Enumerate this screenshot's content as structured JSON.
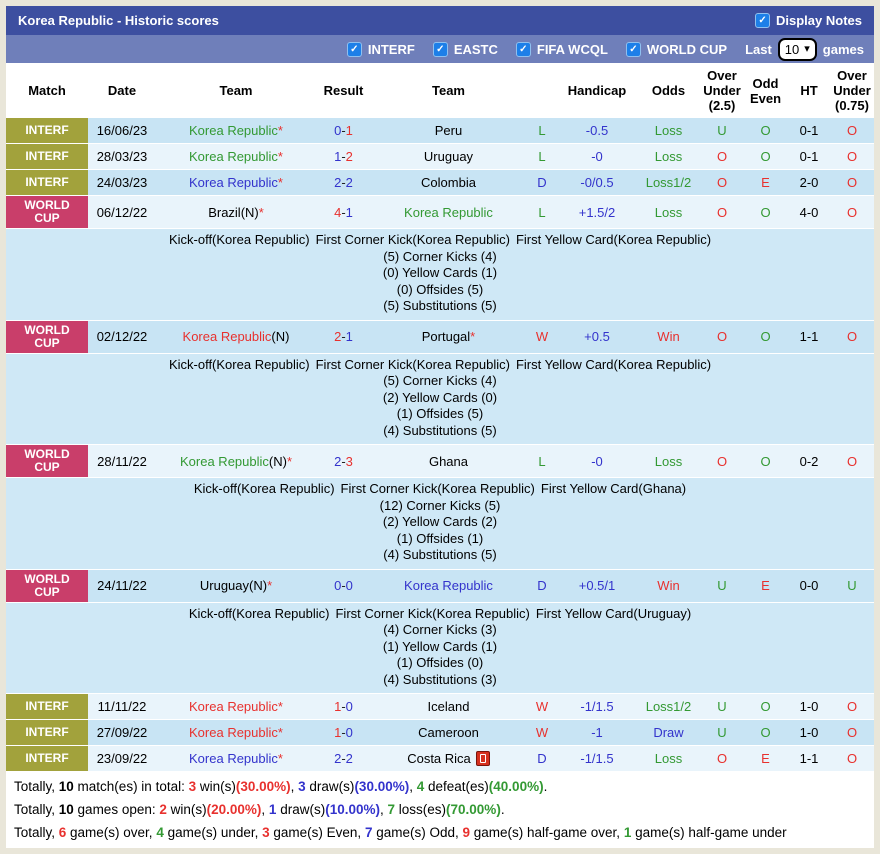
{
  "palette": {
    "titlebar_bg": "#3d4fa0",
    "subbar_bg": "#6f7fba",
    "frame_border": "#e9e6d9",
    "interf_label_bg": "#a2a23c",
    "worldcup_label_bg": "#c93e6a",
    "row_dark_bg": "#c8e4f4",
    "row_light_bg": "#e9f4fb",
    "notes_bg": "#cfe8f6",
    "checkbox_blue": "#1d7fe8",
    "text_red": "#e8312e",
    "text_green": "#339933",
    "text_blue": "#3333cc"
  },
  "icons": {
    "checkmark": "✓",
    "chevron_down": "▾"
  },
  "titlebar": {
    "title": "Korea Republic - Historic scores",
    "display_notes": {
      "label": "Display Notes",
      "checked": true
    }
  },
  "filters": {
    "checkboxes": [
      {
        "label": "INTERF",
        "checked": true
      },
      {
        "label": "EASTC",
        "checked": true
      },
      {
        "label": "FIFA WCQL",
        "checked": true
      },
      {
        "label": "WORLD CUP",
        "checked": true
      }
    ],
    "last_label": "Last",
    "games_count": "10",
    "games_label": "games"
  },
  "table": {
    "headers": {
      "match": "Match",
      "date": "Date",
      "team1": "Team",
      "result": "Result",
      "team2": "Team",
      "wld": "",
      "handicap": "Handicap",
      "odds": "Odds",
      "ou25": "Over Under (2.5)",
      "oddeven": "Odd Even",
      "ht": "HT",
      "ou075": "Over Under (0.75)"
    }
  },
  "rows": [
    {
      "competition": "INTERF",
      "date": "16/06/23",
      "home": {
        "name": "Korea Republic",
        "suffix": "",
        "star": "*",
        "color": "green"
      },
      "score": {
        "home": "0",
        "sep": "-",
        "away": "1",
        "home_color": "blue",
        "away_color": "red"
      },
      "away": {
        "name": "Peru",
        "suffix": "",
        "star": "",
        "color": "black"
      },
      "result_letter": {
        "text": "L",
        "color": "green"
      },
      "handicap": {
        "text": "-0.5",
        "color": "blue"
      },
      "odds": {
        "text": "Loss",
        "color": "green"
      },
      "over_under_25": {
        "text": "U",
        "color": "green"
      },
      "odd_even": {
        "text": "O",
        "color": "green"
      },
      "ht": {
        "text": "0-1",
        "color": "black"
      },
      "over_under_075": {
        "text": "O",
        "color": "red"
      }
    },
    {
      "competition": "INTERF",
      "date": "28/03/23",
      "home": {
        "name": "Korea Republic",
        "suffix": "",
        "star": "*",
        "color": "green"
      },
      "score": {
        "home": "1",
        "sep": "-",
        "away": "2",
        "home_color": "blue",
        "away_color": "red"
      },
      "away": {
        "name": "Uruguay",
        "suffix": "",
        "star": "",
        "color": "black"
      },
      "result_letter": {
        "text": "L",
        "color": "green"
      },
      "handicap": {
        "text": "-0",
        "color": "blue"
      },
      "odds": {
        "text": "Loss",
        "color": "green"
      },
      "over_under_25": {
        "text": "O",
        "color": "red"
      },
      "odd_even": {
        "text": "O",
        "color": "green"
      },
      "ht": {
        "text": "0-1",
        "color": "black"
      },
      "over_under_075": {
        "text": "O",
        "color": "red"
      }
    },
    {
      "competition": "INTERF",
      "date": "24/03/23",
      "home": {
        "name": "Korea Republic",
        "suffix": "",
        "star": "*",
        "color": "blue"
      },
      "score": {
        "home": "2",
        "sep": "-",
        "away": "2",
        "home_color": "blue",
        "away_color": "blue"
      },
      "away": {
        "name": "Colombia",
        "suffix": "",
        "star": "",
        "color": "black"
      },
      "result_letter": {
        "text": "D",
        "color": "blue"
      },
      "handicap": {
        "text": "-0/0.5",
        "color": "blue"
      },
      "odds": {
        "text": "Loss1/2",
        "color": "green"
      },
      "over_under_25": {
        "text": "O",
        "color": "red"
      },
      "odd_even": {
        "text": "E",
        "color": "red"
      },
      "ht": {
        "text": "2-0",
        "color": "black"
      },
      "over_under_075": {
        "text": "O",
        "color": "red"
      }
    },
    {
      "competition": "WORLD CUP",
      "date": "06/12/22",
      "home": {
        "name": "Brazil(N)",
        "suffix": "",
        "star": "*",
        "color": "black"
      },
      "score": {
        "home": "4",
        "sep": "-",
        "away": "1",
        "home_color": "red",
        "away_color": "blue"
      },
      "away": {
        "name": "Korea Republic",
        "suffix": "",
        "star": "",
        "color": "green"
      },
      "result_letter": {
        "text": "L",
        "color": "green"
      },
      "handicap": {
        "text": "+1.5/2",
        "color": "blue"
      },
      "odds": {
        "text": "Loss",
        "color": "green"
      },
      "over_under_25": {
        "text": "O",
        "color": "red"
      },
      "odd_even": {
        "text": "O",
        "color": "green"
      },
      "ht": {
        "text": "4-0",
        "color": "black"
      },
      "over_under_075": {
        "text": "O",
        "color": "red"
      },
      "notes": {
        "kickoff": "Kick-off(Korea Republic)",
        "first_corner": "First Corner Kick(Korea Republic)",
        "first_yellow": "First Yellow Card(Korea Republic)",
        "stats": [
          "(5) Corner Kicks (4)",
          "(0) Yellow Cards (1)",
          "(0) Offsides (5)",
          "(5) Substitutions (5)"
        ]
      }
    },
    {
      "competition": "WORLD CUP",
      "date": "02/12/22",
      "home": {
        "name": "Korea Republic",
        "suffix": "(N)",
        "star": "",
        "color": "red"
      },
      "score": {
        "home": "2",
        "sep": "-",
        "away": "1",
        "home_color": "red",
        "away_color": "blue"
      },
      "away": {
        "name": "Portugal",
        "suffix": "",
        "star": "*",
        "color": "black"
      },
      "result_letter": {
        "text": "W",
        "color": "red"
      },
      "handicap": {
        "text": "+0.5",
        "color": "blue"
      },
      "odds": {
        "text": "Win",
        "color": "red"
      },
      "over_under_25": {
        "text": "O",
        "color": "red"
      },
      "odd_even": {
        "text": "O",
        "color": "green"
      },
      "ht": {
        "text": "1-1",
        "color": "black"
      },
      "over_under_075": {
        "text": "O",
        "color": "red"
      },
      "notes": {
        "kickoff": "Kick-off(Korea Republic)",
        "first_corner": "First Corner Kick(Korea Republic)",
        "first_yellow": "First Yellow Card(Korea Republic)",
        "stats": [
          "(5) Corner Kicks (4)",
          "(2) Yellow Cards (0)",
          "(1) Offsides (5)",
          "(4) Substitutions (5)"
        ]
      }
    },
    {
      "competition": "WORLD CUP",
      "date": "28/11/22",
      "home": {
        "name": "Korea Republic",
        "suffix": "(N)",
        "star": "*",
        "color": "green"
      },
      "score": {
        "home": "2",
        "sep": "-",
        "away": "3",
        "home_color": "blue",
        "away_color": "red"
      },
      "away": {
        "name": "Ghana",
        "suffix": "",
        "star": "",
        "color": "black"
      },
      "result_letter": {
        "text": "L",
        "color": "green"
      },
      "handicap": {
        "text": "-0",
        "color": "blue"
      },
      "odds": {
        "text": "Loss",
        "color": "green"
      },
      "over_under_25": {
        "text": "O",
        "color": "red"
      },
      "odd_even": {
        "text": "O",
        "color": "green"
      },
      "ht": {
        "text": "0-2",
        "color": "black"
      },
      "over_under_075": {
        "text": "O",
        "color": "red"
      },
      "notes": {
        "kickoff": "Kick-off(Korea Republic)",
        "first_corner": "First Corner Kick(Korea Republic)",
        "first_yellow": "First Yellow Card(Ghana)",
        "stats": [
          "(12) Corner Kicks (5)",
          "(2) Yellow Cards (2)",
          "(1) Offsides (1)",
          "(4) Substitutions (5)"
        ]
      }
    },
    {
      "competition": "WORLD CUP",
      "date": "24/11/22",
      "home": {
        "name": "Uruguay(N)",
        "suffix": "",
        "star": "*",
        "color": "black"
      },
      "score": {
        "home": "0",
        "sep": "-",
        "away": "0",
        "home_color": "blue",
        "away_color": "blue"
      },
      "away": {
        "name": "Korea Republic",
        "suffix": "",
        "star": "",
        "color": "blue"
      },
      "result_letter": {
        "text": "D",
        "color": "blue"
      },
      "handicap": {
        "text": "+0.5/1",
        "color": "blue"
      },
      "odds": {
        "text": "Win",
        "color": "red"
      },
      "over_under_25": {
        "text": "U",
        "color": "green"
      },
      "odd_even": {
        "text": "E",
        "color": "red"
      },
      "ht": {
        "text": "0-0",
        "color": "black"
      },
      "over_under_075": {
        "text": "U",
        "color": "green"
      },
      "notes": {
        "kickoff": "Kick-off(Korea Republic)",
        "first_corner": "First Corner Kick(Korea Republic)",
        "first_yellow": "First Yellow Card(Uruguay)",
        "stats": [
          "(4) Corner Kicks (3)",
          "(1) Yellow Cards (1)",
          "(1) Offsides (0)",
          "(4) Substitutions (3)"
        ]
      }
    },
    {
      "competition": "INTERF",
      "date": "11/11/22",
      "home": {
        "name": "Korea Republic",
        "suffix": "",
        "star": "*",
        "color": "red"
      },
      "score": {
        "home": "1",
        "sep": "-",
        "away": "0",
        "home_color": "red",
        "away_color": "blue"
      },
      "away": {
        "name": "Iceland",
        "suffix": "",
        "star": "",
        "color": "black"
      },
      "result_letter": {
        "text": "W",
        "color": "red"
      },
      "handicap": {
        "text": "-1/1.5",
        "color": "blue"
      },
      "odds": {
        "text": "Loss1/2",
        "color": "green"
      },
      "over_under_25": {
        "text": "U",
        "color": "green"
      },
      "odd_even": {
        "text": "O",
        "color": "green"
      },
      "ht": {
        "text": "1-0",
        "color": "black"
      },
      "over_under_075": {
        "text": "O",
        "color": "red"
      }
    },
    {
      "competition": "INTERF",
      "date": "27/09/22",
      "home": {
        "name": "Korea Republic",
        "suffix": "",
        "star": "*",
        "color": "red"
      },
      "score": {
        "home": "1",
        "sep": "-",
        "away": "0",
        "home_color": "red",
        "away_color": "blue"
      },
      "away": {
        "name": "Cameroon",
        "suffix": "",
        "star": "",
        "color": "black"
      },
      "result_letter": {
        "text": "W",
        "color": "red"
      },
      "handicap": {
        "text": "-1",
        "color": "blue"
      },
      "odds": {
        "text": "Draw",
        "color": "blue"
      },
      "over_under_25": {
        "text": "U",
        "color": "green"
      },
      "odd_even": {
        "text": "O",
        "color": "green"
      },
      "ht": {
        "text": "1-0",
        "color": "black"
      },
      "over_under_075": {
        "text": "O",
        "color": "red"
      }
    },
    {
      "competition": "INTERF",
      "date": "23/09/22",
      "home": {
        "name": "Korea Republic",
        "suffix": "",
        "star": "*",
        "color": "blue"
      },
      "score": {
        "home": "2",
        "sep": "-",
        "away": "2",
        "home_color": "blue",
        "away_color": "blue"
      },
      "away": {
        "name": "Costa Rica",
        "suffix": "",
        "star": "",
        "color": "black",
        "red_card_icon": true
      },
      "result_letter": {
        "text": "D",
        "color": "blue"
      },
      "handicap": {
        "text": "-1/1.5",
        "color": "blue"
      },
      "odds": {
        "text": "Loss",
        "color": "green"
      },
      "over_under_25": {
        "text": "O",
        "color": "red"
      },
      "odd_even": {
        "text": "E",
        "color": "red"
      },
      "ht": {
        "text": "1-1",
        "color": "black"
      },
      "over_under_075": {
        "text": "O",
        "color": "red"
      }
    }
  ],
  "footer": {
    "line1": [
      {
        "t": "Totally, "
      },
      {
        "t": "10",
        "c": "num"
      },
      {
        "t": " match(es) in total: "
      },
      {
        "t": "3",
        "c": "red"
      },
      {
        "t": " win(s)"
      },
      {
        "t": "(30.00%)",
        "c": "red"
      },
      {
        "t": ", "
      },
      {
        "t": "3",
        "c": "blue"
      },
      {
        "t": " draw(s)"
      },
      {
        "t": "(30.00%)",
        "c": "blue"
      },
      {
        "t": ", "
      },
      {
        "t": "4",
        "c": "green"
      },
      {
        "t": " defeat(es)"
      },
      {
        "t": "(40.00%)",
        "c": "green"
      },
      {
        "t": "."
      }
    ],
    "line2": [
      {
        "t": "Totally, "
      },
      {
        "t": "10",
        "c": "num"
      },
      {
        "t": " games open: "
      },
      {
        "t": "2",
        "c": "red"
      },
      {
        "t": " win(s)"
      },
      {
        "t": "(20.00%)",
        "c": "red"
      },
      {
        "t": ", "
      },
      {
        "t": "1",
        "c": "blue"
      },
      {
        "t": " draw(s)"
      },
      {
        "t": "(10.00%)",
        "c": "blue"
      },
      {
        "t": ", "
      },
      {
        "t": "7",
        "c": "green"
      },
      {
        "t": " loss(es)"
      },
      {
        "t": "(70.00%)",
        "c": "green"
      },
      {
        "t": "."
      }
    ],
    "line3": [
      {
        "t": "Totally, "
      },
      {
        "t": "6",
        "c": "red"
      },
      {
        "t": " game(s) over, "
      },
      {
        "t": "4",
        "c": "green"
      },
      {
        "t": " game(s) under, "
      },
      {
        "t": "3",
        "c": "red"
      },
      {
        "t": " game(s) Even, "
      },
      {
        "t": "7",
        "c": "blue"
      },
      {
        "t": " game(s) Odd, "
      },
      {
        "t": "9",
        "c": "red"
      },
      {
        "t": " game(s) half-game over, "
      },
      {
        "t": "1",
        "c": "green"
      },
      {
        "t": " game(s) half-game under"
      }
    ]
  }
}
